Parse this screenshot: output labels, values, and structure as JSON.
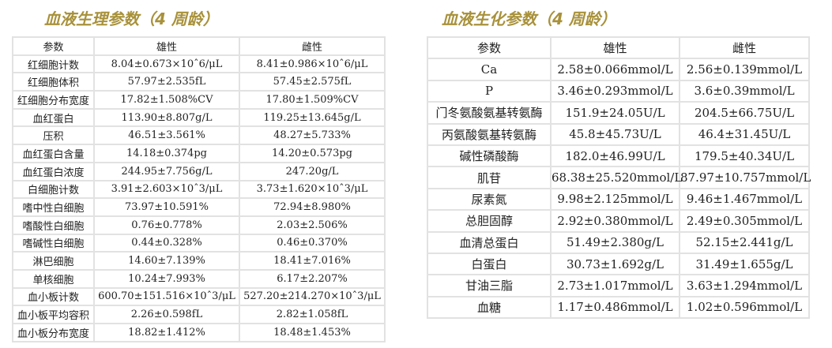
{
  "physiology": {
    "title": "血液生理参数（4 周龄）",
    "headers": [
      "参数",
      "雄性",
      "雌性"
    ],
    "rows": [
      [
        "红细胞计数",
        "8.04±0.673×10ˆ6/μL",
        "8.41±0.986×10ˆ6/μL"
      ],
      [
        "红细胞体积",
        "57.97±2.535fL",
        "57.45±2.575fL"
      ],
      [
        "红细胞分布宽度",
        "17.82±1.508%CV",
        "17.80±1.509%CV"
      ],
      [
        "血红蛋白",
        "113.90±8.807g/L",
        "119.25±13.645g/L"
      ],
      [
        "压积",
        "46.51±3.561%",
        "48.27±5.733%"
      ],
      [
        "血红蛋白含量",
        "14.18±0.374pg",
        "14.20±0.573pg"
      ],
      [
        "血红蛋白浓度",
        "244.95±7.756g/L",
        "247.20g/L"
      ],
      [
        "白细胞计数",
        "3.91±2.603×10ˆ3/μL",
        "3.73±1.620×10ˆ3/μL"
      ],
      [
        "嗜中性白细胞",
        "73.97±10.591%",
        "72.94±8.980%"
      ],
      [
        "嗜酸性白细胞",
        "0.76±0.778%",
        "2.03±2.506%"
      ],
      [
        "嗜碱性白细胞",
        "0.44±0.328%",
        "0.46±0.370%"
      ],
      [
        "淋巴细胞",
        "14.60±7.139%",
        "18.41±7.016%"
      ],
      [
        "单核细胞",
        "10.24±7.993%",
        "6.17±2.207%"
      ],
      [
        "血小板计数",
        "600.70±151.516×10ˆ3/μL",
        "527.20±214.270×10ˆ3/μL"
      ],
      [
        "血小板平均容积",
        "2.26±0.598fL",
        "2.82±1.058fL"
      ],
      [
        "血小板分布宽度",
        "18.82±1.412%",
        "18.48±1.453%"
      ]
    ]
  },
  "biochemistry": {
    "title": "血液生化参数（4 周龄）",
    "headers": [
      "参数",
      "雄性",
      "雌性"
    ],
    "rows": [
      [
        "Ca",
        "2.58±0.066mmol/L",
        "2.56±0.139mmol/L"
      ],
      [
        "P",
        "3.46±0.293mmol/L",
        "3.6±0.39mmol/L"
      ],
      [
        "门冬氨酸氨基转氨酶",
        "151.9±24.05U/L",
        "204.5±66.75U/L"
      ],
      [
        "丙氨酸氨基转氨酶",
        "45.8±45.73U/L",
        "46.4±31.45U/L"
      ],
      [
        "碱性磷酸酶",
        "182.0±46.99U/L",
        "179.5±40.34U/L"
      ],
      [
        "肌苷",
        "68.38±25.520mmol/L",
        "87.97±10.757mmol/L"
      ],
      [
        "尿素氮",
        "9.98±2.125mmol/L",
        "9.46±1.467mmol/L"
      ],
      [
        "总胆固醇",
        "2.92±0.380mmol/L",
        "2.49±0.305mmol/L"
      ],
      [
        "血清总蛋白",
        "51.49±2.380g/L",
        "52.15±2.441g/L"
      ],
      [
        "白蛋白",
        "30.73±1.692g/L",
        "31.49±1.655g/L"
      ],
      [
        "甘油三脂",
        "2.73±1.017mmol/L",
        "3.63±1.294mmol/L"
      ],
      [
        "血糖",
        "1.17±0.486mmol/L",
        "1.02±0.596mmol/L"
      ]
    ]
  },
  "colors": {
    "title": "#a8913a",
    "border": "#e2e2e2"
  }
}
